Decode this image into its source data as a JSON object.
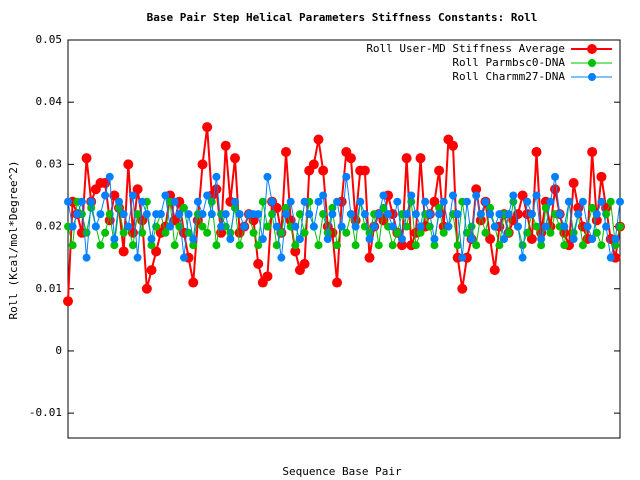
{
  "chart_data": {
    "type": "line",
    "title": "Base Pair Step Helical Parameters Stiffness Constants: Roll",
    "x_label": "Sequence Base Pair",
    "y_label": "Roll (Kcal/mol*Degree^2)",
    "ylim": [
      -0.014,
      0.05
    ],
    "yticks": [
      -0.01,
      0,
      0.01,
      0.02,
      0.03,
      0.04,
      0.05
    ],
    "legend": "top-right",
    "categories": [
      null,
      null,
      null,
      null,
      null,
      null,
      null,
      null,
      null,
      null,
      null,
      null,
      null,
      null,
      null,
      null,
      null,
      null,
      null,
      null,
      null,
      null,
      null,
      null,
      null,
      null,
      null,
      null,
      null,
      null,
      null,
      null,
      null,
      null,
      null,
      null,
      null,
      null,
      null,
      null,
      null,
      null,
      null,
      null,
      null,
      null,
      null,
      null,
      null,
      null,
      null,
      null,
      null,
      null,
      null,
      null,
      null,
      null,
      null,
      null,
      null,
      null,
      null,
      null,
      null,
      null,
      null,
      null,
      null,
      null,
      null,
      null,
      null,
      null,
      null,
      null,
      null,
      null,
      null,
      null,
      null,
      null,
      null,
      null,
      null,
      null,
      null,
      null,
      null,
      null,
      null,
      null,
      null,
      null,
      null,
      null,
      null,
      null,
      null,
      null,
      null,
      null,
      null,
      null,
      null,
      null,
      null,
      null,
      null,
      null,
      null,
      null,
      null,
      null,
      null,
      null,
      null,
      null,
      null,
      null
    ],
    "series": [
      {
        "name": "Roll User-MD Stiffness Average",
        "color": "#ff0000",
        "values": [
          0.008,
          0.024,
          0.022,
          0.019,
          0.031,
          0.024,
          0.026,
          0.027,
          0.027,
          0.021,
          0.025,
          0.023,
          0.016,
          0.03,
          0.019,
          0.026,
          0.021,
          0.01,
          0.013,
          0.016,
          0.019,
          0.02,
          0.025,
          0.021,
          0.024,
          0.019,
          0.015,
          0.011,
          0.021,
          0.03,
          0.036,
          0.025,
          0.026,
          0.019,
          0.033,
          0.024,
          0.031,
          0.019,
          0.02,
          0.022,
          0.021,
          0.014,
          0.011,
          0.012,
          0.024,
          0.023,
          0.019,
          0.032,
          0.021,
          0.016,
          0.013,
          0.014,
          0.029,
          0.03,
          0.034,
          0.029,
          0.02,
          0.019,
          0.011,
          0.024,
          0.032,
          0.031,
          0.021,
          0.029,
          0.029,
          0.015,
          0.02,
          0.022,
          0.021,
          0.025,
          0.022,
          0.019,
          0.017,
          0.031,
          0.017,
          0.019,
          0.031,
          0.02,
          0.022,
          0.024,
          0.029,
          0.02,
          0.034,
          0.033,
          0.015,
          0.01,
          0.015,
          0.018,
          0.026,
          0.021,
          0.024,
          0.018,
          0.013,
          0.02,
          0.022,
          0.019,
          0.021,
          0.022,
          0.025,
          0.022,
          0.018,
          0.032,
          0.019,
          0.024,
          0.02,
          0.026,
          0.022,
          0.019,
          0.017,
          0.027,
          0.023,
          0.02,
          0.018,
          0.032,
          0.021,
          0.028,
          0.023,
          0.018,
          0.015,
          0.02
        ]
      },
      {
        "name": "Roll Parmbsc0-DNA",
        "color": "#00c000",
        "values": [
          0.02,
          0.017,
          0.024,
          0.022,
          0.019,
          0.023,
          0.02,
          0.017,
          0.019,
          0.022,
          0.017,
          0.023,
          0.019,
          0.02,
          0.017,
          0.022,
          0.019,
          0.024,
          0.017,
          0.02,
          0.022,
          0.019,
          0.024,
          0.017,
          0.02,
          0.023,
          0.019,
          0.017,
          0.022,
          0.02,
          0.019,
          0.024,
          0.017,
          0.022,
          0.02,
          0.019,
          0.023,
          0.017,
          0.02,
          0.022,
          0.019,
          0.017,
          0.024,
          0.02,
          0.022,
          0.017,
          0.019,
          0.023,
          0.02,
          0.017,
          0.022,
          0.019,
          0.024,
          0.02,
          0.017,
          0.022,
          0.019,
          0.023,
          0.017,
          0.02,
          0.019,
          0.022,
          0.017,
          0.024,
          0.02,
          0.019,
          0.022,
          0.017,
          0.023,
          0.02,
          0.017,
          0.019,
          0.022,
          0.02,
          0.024,
          0.017,
          0.019,
          0.022,
          0.02,
          0.017,
          0.023,
          0.019,
          0.02,
          0.022,
          0.017,
          0.024,
          0.019,
          0.02,
          0.017,
          0.022,
          0.019,
          0.023,
          0.02,
          0.017,
          0.022,
          0.019,
          0.024,
          0.02,
          0.017,
          0.019,
          0.022,
          0.02,
          0.017,
          0.023,
          0.019,
          0.022,
          0.02,
          0.017,
          0.024,
          0.019,
          0.022,
          0.017,
          0.02,
          0.023,
          0.019,
          0.017,
          0.022,
          0.024,
          0.017,
          0.02
        ]
      },
      {
        "name": "Roll Charmm27-DNA",
        "color": "#0080ff",
        "values": [
          0.024,
          0.02,
          0.022,
          0.024,
          0.015,
          0.024,
          0.02,
          0.022,
          0.025,
          0.028,
          0.018,
          0.024,
          0.022,
          0.02,
          0.025,
          0.015,
          0.024,
          0.022,
          0.018,
          0.022,
          0.022,
          0.025,
          0.02,
          0.024,
          0.022,
          0.015,
          0.022,
          0.018,
          0.024,
          0.022,
          0.025,
          0.022,
          0.028,
          0.02,
          0.022,
          0.018,
          0.024,
          0.022,
          0.02,
          0.022,
          0.022,
          0.022,
          0.018,
          0.028,
          0.024,
          0.02,
          0.015,
          0.022,
          0.024,
          0.02,
          0.018,
          0.024,
          0.022,
          0.02,
          0.024,
          0.025,
          0.018,
          0.022,
          0.024,
          0.02,
          0.028,
          0.022,
          0.02,
          0.024,
          0.022,
          0.018,
          0.02,
          0.022,
          0.025,
          0.022,
          0.02,
          0.024,
          0.018,
          0.022,
          0.025,
          0.022,
          0.02,
          0.024,
          0.022,
          0.018,
          0.022,
          0.024,
          0.02,
          0.025,
          0.022,
          0.015,
          0.024,
          0.018,
          0.025,
          0.022,
          0.024,
          0.022,
          0.02,
          0.022,
          0.018,
          0.022,
          0.025,
          0.02,
          0.015,
          0.024,
          0.022,
          0.025,
          0.018,
          0.02,
          0.024,
          0.028,
          0.022,
          0.02,
          0.024,
          0.018,
          0.022,
          0.024,
          0.02,
          0.018,
          0.022,
          0.024,
          0.02,
          0.015,
          0.018,
          0.024
        ]
      }
    ]
  }
}
